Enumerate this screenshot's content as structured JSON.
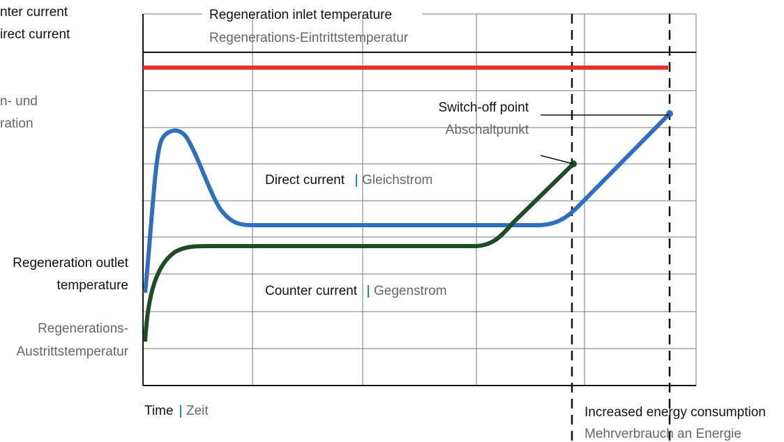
{
  "left_labels": {
    "cut_1": "nter current",
    "cut_2": "irect current",
    "cut_3": "n- und",
    "cut_4": "ration"
  },
  "inlet": {
    "en": "Regeneration inlet temperature",
    "de": "Regenerations-Eintrittstemperatur"
  },
  "switch_off": {
    "en": "Switch-off point",
    "de": "Abschaltpunkt"
  },
  "direct": {
    "en": "Direct current",
    "de": "Gleichstrom"
  },
  "counter": {
    "en": "Counter current",
    "de": "Gegenstrom"
  },
  "outlet": {
    "en_1": "Regeneration outlet",
    "en_2": "temperature",
    "de_1": "Regenerations-",
    "de_2": "Austrittstemperatur"
  },
  "time": {
    "en": "Time",
    "de": "Zeit"
  },
  "energy": {
    "en": "Increased energy consumption",
    "de": "Mehrverbrauch an Energie"
  }
}
